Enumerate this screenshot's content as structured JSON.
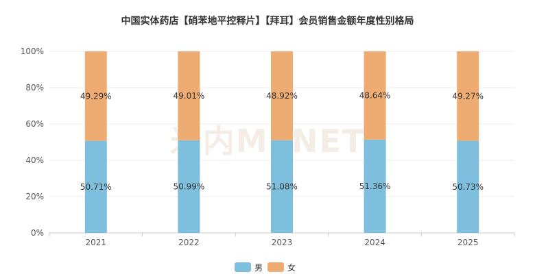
{
  "chart_data": {
    "type": "bar",
    "stacked": true,
    "percent": true,
    "title": "中国实体药店【硝苯地平控释片】【拜耳】会员销售金额年度性别格局",
    "categories": [
      "2021",
      "2022",
      "2023",
      "2024",
      "2025"
    ],
    "series": [
      {
        "name": "男",
        "color": "#7dbfdc",
        "values": [
          50.71,
          50.99,
          51.08,
          51.36,
          50.73
        ],
        "labels": [
          "50.71%",
          "50.99%",
          "51.08%",
          "51.36%",
          "50.73%"
        ]
      },
      {
        "name": "女",
        "color": "#efac72",
        "values": [
          49.29,
          49.01,
          48.92,
          48.64,
          49.27
        ],
        "labels": [
          "49.29%",
          "49.01%",
          "48.92%",
          "48.64%",
          "49.27%"
        ]
      }
    ],
    "ylim": [
      0,
      100
    ],
    "yticks": [
      "0%",
      "20%",
      "40%",
      "60%",
      "80%",
      "100%"
    ],
    "grid": true,
    "legend": "bottom-center",
    "watermark": "米内MENET"
  }
}
